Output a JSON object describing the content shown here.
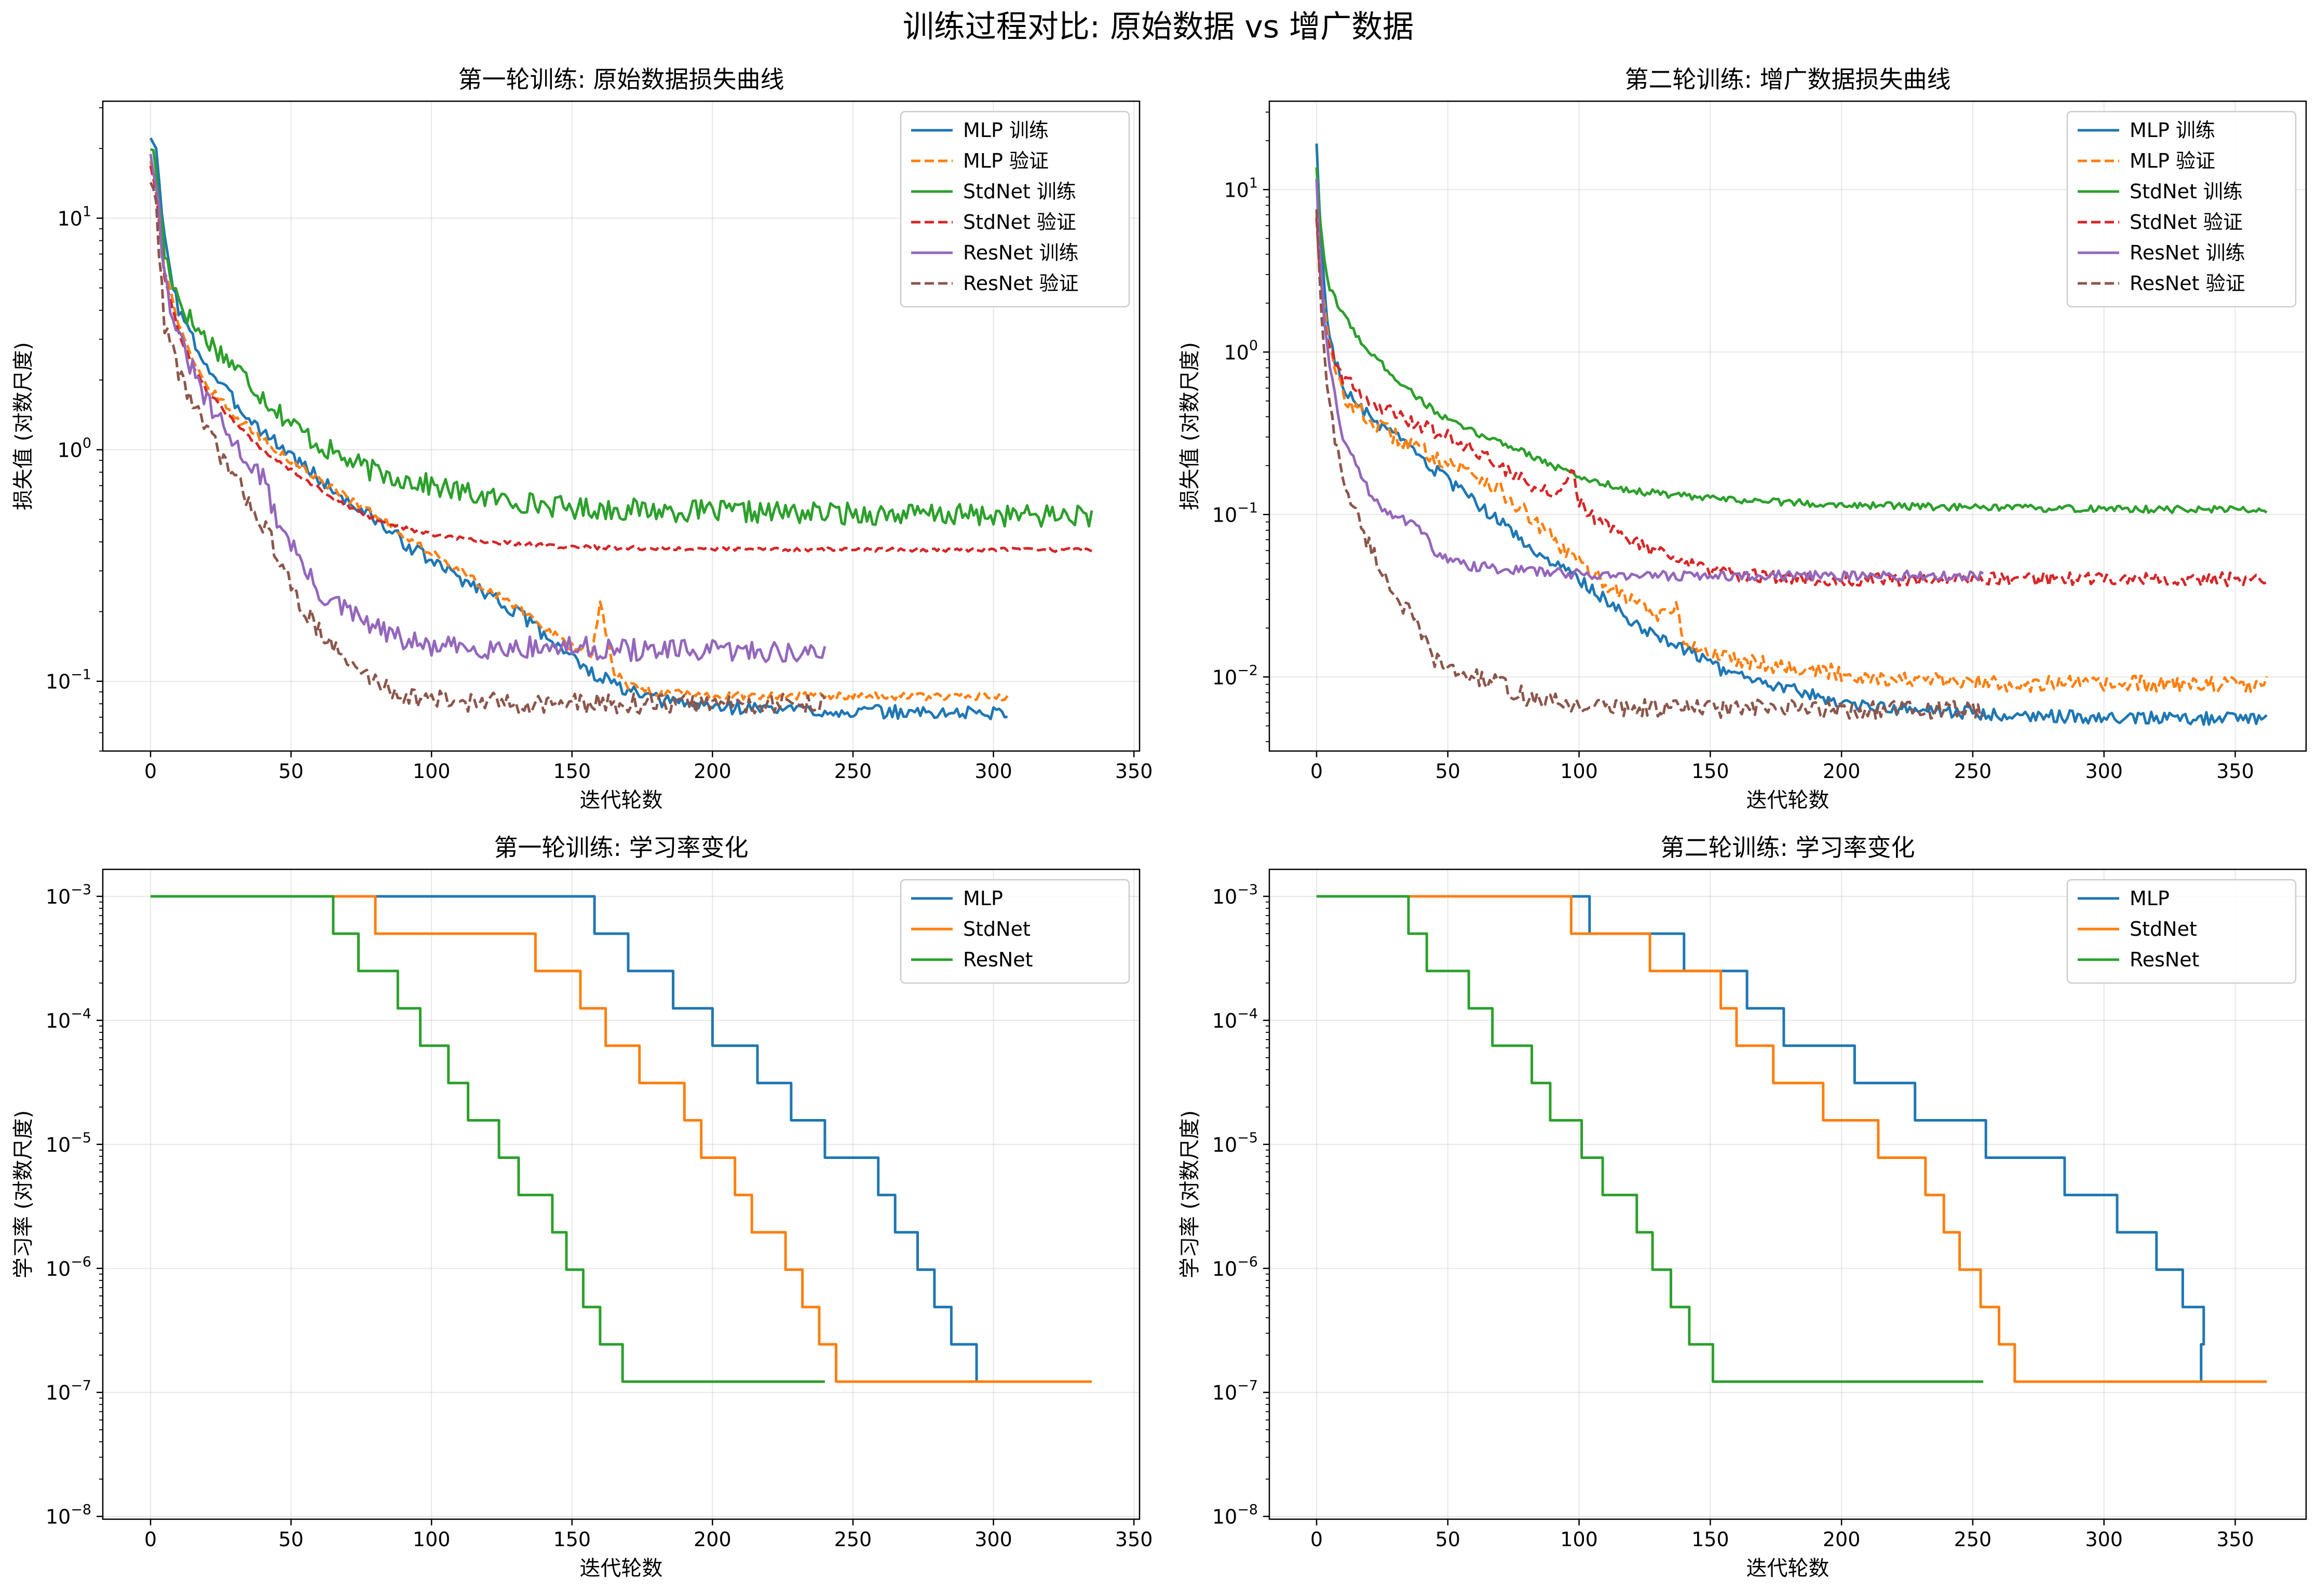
{
  "figure": {
    "suptitle": "训练过程对比: 原始数据 vs 增广数据"
  },
  "colors": {
    "blue": "#1f77b4",
    "orange": "#ff7f0e",
    "green": "#2ca02c",
    "red": "#d62728",
    "purple": "#9467bd",
    "brown": "#8c564b"
  },
  "chart_data": [
    {
      "id": "loss1",
      "type": "line",
      "title": "第一轮训练: 原始数据损失曲线",
      "xlabel": "迭代轮数",
      "ylabel": "损失值 (对数尺度)",
      "yscale": "log",
      "xlim": [
        -17,
        352
      ],
      "ylim": [
        0.05,
        32
      ],
      "xticks": [
        "0",
        "50",
        "100",
        "150",
        "200",
        "250",
        "300",
        "350"
      ],
      "yticks": [
        {
          "value": 0.1,
          "base": "10",
          "exp": "−1"
        },
        {
          "value": 1,
          "base": "10",
          "exp": "0"
        },
        {
          "value": 10,
          "base": "10",
          "exp": "1"
        }
      ],
      "grid": true,
      "legend": "top-right",
      "series": [
        {
          "name": "MLP 训练",
          "color": "blue",
          "dash": "solid",
          "x": [
            0,
            2,
            5,
            10,
            15,
            20,
            30,
            40,
            50,
            60,
            70,
            80,
            90,
            100,
            110,
            120,
            130,
            140,
            150,
            155,
            160,
            170,
            180,
            200,
            220,
            250,
            280,
            305
          ],
          "y": [
            23,
            19,
            8,
            4,
            3,
            2.3,
            1.6,
            1.2,
            0.95,
            0.75,
            0.6,
            0.5,
            0.4,
            0.33,
            0.28,
            0.24,
            0.2,
            0.16,
            0.13,
            0.11,
            0.105,
            0.09,
            0.083,
            0.078,
            0.076,
            0.074,
            0.073,
            0.073
          ],
          "noise": 0.07
        },
        {
          "name": "MLP 验证",
          "color": "orange",
          "dash": "dashed",
          "x": [
            0,
            2,
            5,
            10,
            15,
            20,
            30,
            40,
            50,
            60,
            70,
            80,
            90,
            100,
            110,
            120,
            130,
            140,
            150,
            157,
            160,
            165,
            170,
            180,
            200,
            250,
            305
          ],
          "y": [
            18,
            14,
            6,
            3.5,
            2.5,
            1.9,
            1.4,
            1.1,
            0.9,
            0.75,
            0.62,
            0.52,
            0.43,
            0.36,
            0.3,
            0.25,
            0.21,
            0.17,
            0.14,
            0.13,
            0.22,
            0.11,
            0.095,
            0.09,
            0.087,
            0.086,
            0.086
          ],
          "noise": 0.04
        },
        {
          "name": "StdNet 训练",
          "color": "green",
          "dash": "solid",
          "x": [
            0,
            2,
            5,
            10,
            15,
            20,
            30,
            40,
            50,
            60,
            70,
            80,
            100,
            120,
            150,
            200,
            250,
            300,
            335
          ],
          "y": [
            21,
            16,
            7,
            4.5,
            3.5,
            3,
            2.3,
            1.7,
            1.3,
            1.05,
            0.9,
            0.8,
            0.7,
            0.62,
            0.56,
            0.54,
            0.53,
            0.52,
            0.52
          ],
          "noise": 0.11
        },
        {
          "name": "StdNet 验证",
          "color": "red",
          "dash": "dashed",
          "x": [
            0,
            2,
            5,
            10,
            15,
            20,
            30,
            40,
            50,
            60,
            70,
            80,
            90,
            100,
            120,
            150,
            180,
            220,
            270,
            335
          ],
          "y": [
            17,
            13,
            5.5,
            3.2,
            2.3,
            1.8,
            1.3,
            1.0,
            0.82,
            0.68,
            0.57,
            0.5,
            0.46,
            0.43,
            0.4,
            0.38,
            0.375,
            0.372,
            0.37,
            0.37
          ],
          "noise": 0.02
        },
        {
          "name": "ResNet 训练",
          "color": "purple",
          "dash": "solid",
          "x": [
            0,
            2,
            5,
            10,
            15,
            20,
            25,
            30,
            40,
            45,
            50,
            55,
            60,
            70,
            80,
            90,
            100,
            120,
            150,
            180,
            200,
            220,
            240
          ],
          "y": [
            20,
            15,
            5.5,
            3,
            2.2,
            1.6,
            1.3,
            1.05,
            0.75,
            0.5,
            0.4,
            0.3,
            0.24,
            0.2,
            0.17,
            0.15,
            0.14,
            0.14,
            0.14,
            0.135,
            0.135,
            0.135,
            0.13
          ],
          "noise": 0.11
        },
        {
          "name": "ResNet 验证",
          "color": "brown",
          "dash": "dashed",
          "x": [
            0,
            2,
            5,
            10,
            15,
            20,
            25,
            30,
            35,
            40,
            45,
            50,
            55,
            60,
            65,
            70,
            80,
            90,
            100,
            120,
            150,
            200,
            240
          ],
          "y": [
            15,
            11,
            3.5,
            2.2,
            1.6,
            1.2,
            0.95,
            0.75,
            0.6,
            0.48,
            0.36,
            0.25,
            0.2,
            0.17,
            0.14,
            0.12,
            0.1,
            0.087,
            0.083,
            0.081,
            0.08,
            0.08,
            0.08
          ],
          "noise": 0.1
        }
      ]
    },
    {
      "id": "loss2",
      "type": "line",
      "title": "第二轮训练: 增广数据损失曲线",
      "xlabel": "迭代轮数",
      "ylabel": "损失值 (对数尺度)",
      "yscale": "log",
      "xlim": [
        -18,
        377
      ],
      "ylim": [
        0.0035,
        35
      ],
      "xticks": [
        "0",
        "50",
        "100",
        "150",
        "200",
        "250",
        "300",
        "350"
      ],
      "yticks": [
        {
          "value": 0.01,
          "base": "10",
          "exp": "−2"
        },
        {
          "value": 0.1,
          "base": "10",
          "exp": "−1"
        },
        {
          "value": 1,
          "base": "10",
          "exp": "0"
        },
        {
          "value": 10,
          "base": "10",
          "exp": "1"
        }
      ],
      "grid": true,
      "legend": "top-right",
      "series": [
        {
          "name": "MLP 训练",
          "color": "blue",
          "dash": "solid",
          "x": [
            0,
            1,
            3,
            5,
            8,
            10,
            15,
            20,
            30,
            40,
            50,
            60,
            70,
            80,
            90,
            100,
            110,
            120,
            130,
            140,
            150,
            160,
            180,
            200,
            220,
            250,
            300,
            362
          ],
          "y": [
            20,
            8,
            2.5,
            1.2,
            0.8,
            0.6,
            0.48,
            0.4,
            0.3,
            0.22,
            0.16,
            0.12,
            0.09,
            0.065,
            0.05,
            0.04,
            0.03,
            0.022,
            0.018,
            0.015,
            0.012,
            0.01,
            0.0085,
            0.007,
            0.0063,
            0.006,
            0.0056,
            0.0055
          ],
          "noise": 0.09
        },
        {
          "name": "MLP 验证",
          "color": "orange",
          "dash": "dashed",
          "x": [
            0,
            1,
            3,
            5,
            8,
            10,
            15,
            20,
            30,
            40,
            50,
            60,
            70,
            80,
            90,
            100,
            110,
            120,
            130,
            138,
            140,
            150,
            160,
            180,
            200,
            220,
            250,
            300,
            362
          ],
          "y": [
            7,
            4,
            1.8,
            1.0,
            0.7,
            0.55,
            0.45,
            0.38,
            0.3,
            0.25,
            0.21,
            0.18,
            0.14,
            0.1,
            0.07,
            0.05,
            0.038,
            0.03,
            0.024,
            0.026,
            0.016,
            0.014,
            0.013,
            0.0115,
            0.0105,
            0.0097,
            0.0092,
            0.009,
            0.009
          ],
          "noise": 0.12
        },
        {
          "name": "StdNet 训练",
          "color": "green",
          "dash": "solid",
          "x": [
            0,
            1,
            3,
            5,
            8,
            10,
            15,
            20,
            30,
            40,
            50,
            60,
            70,
            80,
            90,
            100,
            120,
            150,
            200,
            250,
            300,
            362
          ],
          "y": [
            14,
            7,
            3.5,
            2.5,
            2.0,
            1.7,
            1.3,
            1.0,
            0.7,
            0.5,
            0.38,
            0.32,
            0.28,
            0.24,
            0.2,
            0.17,
            0.14,
            0.125,
            0.115,
            0.11,
            0.108,
            0.107
          ],
          "noise": 0.05
        },
        {
          "name": "StdNet 验证",
          "color": "red",
          "dash": "dashed",
          "x": [
            0,
            1,
            3,
            5,
            8,
            10,
            15,
            20,
            30,
            40,
            50,
            60,
            70,
            80,
            90,
            98,
            100,
            105,
            110,
            120,
            130,
            140,
            150,
            160,
            180,
            200,
            230,
            260,
            300,
            362
          ],
          "y": [
            7,
            3.5,
            1.6,
            1.1,
            0.8,
            0.7,
            0.6,
            0.5,
            0.42,
            0.35,
            0.3,
            0.25,
            0.2,
            0.16,
            0.13,
            0.18,
            0.12,
            0.1,
            0.085,
            0.07,
            0.058,
            0.05,
            0.045,
            0.043,
            0.041,
            0.04,
            0.04,
            0.04,
            0.04,
            0.04
          ],
          "noise": 0.1
        },
        {
          "name": "ResNet 训练",
          "color": "purple",
          "dash": "solid",
          "x": [
            0,
            1,
            3,
            5,
            8,
            10,
            15,
            20,
            25,
            30,
            35,
            40,
            45,
            50,
            60,
            80,
            100,
            120,
            150,
            200,
            254
          ],
          "y": [
            12,
            5,
            1.5,
            0.8,
            0.45,
            0.3,
            0.2,
            0.14,
            0.11,
            0.1,
            0.09,
            0.08,
            0.06,
            0.052,
            0.048,
            0.045,
            0.043,
            0.042,
            0.042,
            0.042,
            0.042
          ],
          "noise": 0.07
        },
        {
          "name": "ResNet 验证",
          "color": "brown",
          "dash": "dashed",
          "x": [
            0,
            1,
            3,
            5,
            8,
            10,
            15,
            20,
            25,
            30,
            35,
            40,
            45,
            50,
            60,
            70,
            80,
            90,
            100,
            120,
            150,
            200,
            254
          ],
          "y": [
            8,
            3,
            0.9,
            0.45,
            0.25,
            0.17,
            0.1,
            0.065,
            0.045,
            0.032,
            0.025,
            0.018,
            0.013,
            0.011,
            0.01,
            0.009,
            0.0075,
            0.007,
            0.0067,
            0.0065,
            0.0064,
            0.0063,
            0.0063
          ],
          "noise": 0.13
        }
      ]
    },
    {
      "id": "lr1",
      "type": "line",
      "title": "第一轮训练: 学习率变化",
      "xlabel": "迭代轮数",
      "ylabel": "学习率 (对数尺度)",
      "yscale": "log",
      "xlim": [
        -17,
        352
      ],
      "ylim": [
        9.5e-09,
        0.00165
      ],
      "xticks": [
        "0",
        "50",
        "100",
        "150",
        "200",
        "250",
        "300",
        "350"
      ],
      "yticks": [
        {
          "value": 1e-08,
          "base": "10",
          "exp": "−8"
        },
        {
          "value": 1e-07,
          "base": "10",
          "exp": "−7"
        },
        {
          "value": 1e-06,
          "base": "10",
          "exp": "−6"
        },
        {
          "value": 1e-05,
          "base": "10",
          "exp": "−5"
        },
        {
          "value": 0.0001,
          "base": "10",
          "exp": "−4"
        },
        {
          "value": 0.001,
          "base": "10",
          "exp": "−3"
        }
      ],
      "grid": true,
      "legend": "top-right",
      "series": [
        {
          "name": "MLP",
          "color": "blue",
          "dash": "solid",
          "step": true,
          "start": 0,
          "end": 335,
          "initial": 0.001,
          "drops": [
            158,
            170,
            186,
            200,
            216,
            228,
            240,
            259,
            265,
            273,
            279,
            285,
            294
          ],
          "floor": 1.5e-08
        },
        {
          "name": "StdNet",
          "color": "orange",
          "dash": "solid",
          "step": true,
          "start": 0,
          "end": 335,
          "initial": 0.001,
          "drops": [
            80,
            137,
            153,
            162,
            174,
            190,
            196,
            208,
            214,
            226,
            232,
            238,
            244
          ],
          "floor": 1.5e-08
        },
        {
          "name": "ResNet",
          "color": "green",
          "dash": "solid",
          "step": true,
          "start": 0,
          "end": 240,
          "initial": 0.001,
          "drops": [
            65,
            74,
            88,
            96,
            106,
            113,
            124,
            131,
            143,
            148,
            154,
            160,
            168
          ],
          "floor": 1.5e-08
        }
      ]
    },
    {
      "id": "lr2",
      "type": "line",
      "title": "第二轮训练: 学习率变化",
      "xlabel": "迭代轮数",
      "ylabel": "学习率 (对数尺度)",
      "yscale": "log",
      "xlim": [
        -18,
        377
      ],
      "ylim": [
        9.5e-09,
        0.00165
      ],
      "xticks": [
        "0",
        "50",
        "100",
        "150",
        "200",
        "250",
        "300",
        "350"
      ],
      "yticks": [
        {
          "value": 1e-08,
          "base": "10",
          "exp": "−8"
        },
        {
          "value": 1e-07,
          "base": "10",
          "exp": "−7"
        },
        {
          "value": 1e-06,
          "base": "10",
          "exp": "−6"
        },
        {
          "value": 1e-05,
          "base": "10",
          "exp": "−5"
        },
        {
          "value": 0.0001,
          "base": "10",
          "exp": "−4"
        },
        {
          "value": 0.001,
          "base": "10",
          "exp": "−3"
        }
      ],
      "grid": true,
      "legend": "top-right",
      "series": [
        {
          "name": "MLP",
          "color": "blue",
          "dash": "solid",
          "step": true,
          "start": 0,
          "end": 362,
          "initial": 0.001,
          "drops": [
            104,
            140,
            164,
            178,
            205,
            228,
            255,
            285,
            305,
            320,
            330,
            338,
            337
          ],
          "floor": 1.5e-08
        },
        {
          "name": "StdNet",
          "color": "orange",
          "dash": "solid",
          "step": true,
          "start": 0,
          "end": 362,
          "initial": 0.001,
          "drops": [
            97,
            127,
            154,
            160,
            174,
            193,
            214,
            232,
            239,
            245,
            253,
            260,
            266
          ],
          "floor": 1.5e-08
        },
        {
          "name": "ResNet",
          "color": "green",
          "dash": "solid",
          "step": true,
          "start": 0,
          "end": 254,
          "initial": 0.001,
          "drops": [
            35,
            42,
            58,
            67,
            82,
            89,
            101,
            109,
            122,
            128,
            135,
            142,
            151
          ],
          "floor": 1.5e-08
        }
      ]
    }
  ]
}
